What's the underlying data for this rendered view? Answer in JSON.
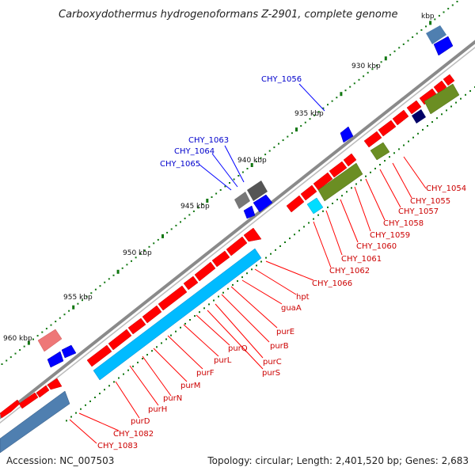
{
  "title": "Carboxydothermus hydrogenoformans Z-2901, complete genome",
  "title_suffix": "kbp",
  "accession": "Accession: NC_007503",
  "topology": "Topology: circular; Length: 2,401,520 bp; Genes: 2,683",
  "ticks": [
    "930 kbp",
    "935 kbp",
    "940 kbp",
    "945 kbp",
    "950 kbp",
    "955 kbp",
    "960 kbp"
  ],
  "labels_blue": [
    "CHY_1056",
    "CHY_1063",
    "CHY_1064",
    "CHY_1065"
  ],
  "labels_red": [
    "CHY_1054",
    "CHY_1055",
    "CHY_1057",
    "CHY_1058",
    "CHY_1059",
    "CHY_1060",
    "CHY_1061",
    "CHY_1062",
    "CHY_1066",
    "hpt",
    "guaA",
    "purE",
    "purB",
    "purC",
    "purS",
    "purQ",
    "purL",
    "purF",
    "purM",
    "purN",
    "purH",
    "purD",
    "CHY_1082",
    "CHY_1083"
  ],
  "colors": {
    "cds_red": "#ff0000",
    "cds_blue": "#0000ff",
    "cyan": "#00bbff",
    "olive": "#6b8e23",
    "gray": "#777777",
    "steelblue": "#4f7fb0",
    "backbone": "#888888",
    "tick_green": "#117711"
  }
}
